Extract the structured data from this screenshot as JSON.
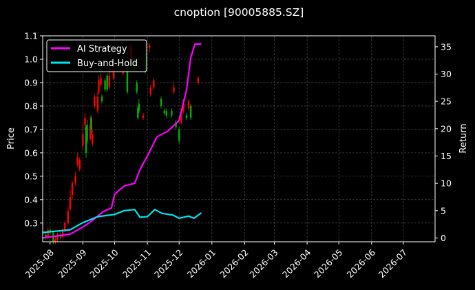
{
  "chart_data": {
    "type": "line",
    "title": "cnoption [90005885.SZ]",
    "xlabel": "",
    "ylabel_left": "Price",
    "ylabel_right": "Return",
    "x_ticks": [
      "2025-08",
      "2025-09",
      "2025-10",
      "2025-11",
      "2025-12",
      "2026-01",
      "2026-02",
      "2026-03",
      "2026-04",
      "2026-05",
      "2026-06",
      "2026-07"
    ],
    "x_range": [
      "2025-07-25",
      "2026-07-31"
    ],
    "y_left_ticks": [
      "0.3",
      "0.4",
      "0.5",
      "0.6",
      "0.7",
      "0.8",
      "0.9",
      "1.0",
      "1.1"
    ],
    "y_left_range": [
      0.22,
      1.1
    ],
    "y_right_ticks": [
      "0",
      "5",
      "10",
      "15",
      "20",
      "25",
      "30",
      "35"
    ],
    "y_right_range": [
      -0.7,
      37
    ],
    "grid": true,
    "legend_position": "top-left",
    "colors": {
      "up": "#ff0000",
      "down": "#00b000",
      "ai": "#ff00ff",
      "bh": "#00e5ee",
      "background": "#000000"
    },
    "series": [
      {
        "name": "AI Strategy",
        "axis": "right",
        "color": "#ff00ff",
        "points": [
          [
            "2025-07-25",
            0.0
          ],
          [
            "2025-08-05",
            0.3
          ],
          [
            "2025-08-20",
            0.7
          ],
          [
            "2025-09-01",
            2.0
          ],
          [
            "2025-09-10",
            3.2
          ],
          [
            "2025-09-20",
            4.8
          ],
          [
            "2025-09-28",
            5.5
          ],
          [
            "2025-10-01",
            8.0
          ],
          [
            "2025-10-10",
            9.5
          ],
          [
            "2025-10-20",
            10.0
          ],
          [
            "2025-10-25",
            12.5
          ],
          [
            "2025-11-01",
            15.0
          ],
          [
            "2025-11-10",
            18.5
          ],
          [
            "2025-11-20",
            19.5
          ],
          [
            "2025-12-01",
            21.5
          ],
          [
            "2025-12-08",
            27.0
          ],
          [
            "2025-12-12",
            33.0
          ],
          [
            "2025-12-16",
            35.5
          ],
          [
            "2025-12-22",
            35.5
          ]
        ]
      },
      {
        "name": "Buy-and-Hold",
        "axis": "right",
        "color": "#00e5ee",
        "points": [
          [
            "2025-07-25",
            1.0
          ],
          [
            "2025-08-05",
            1.2
          ],
          [
            "2025-08-20",
            1.5
          ],
          [
            "2025-09-01",
            2.8
          ],
          [
            "2025-09-15",
            3.9
          ],
          [
            "2025-10-01",
            4.3
          ],
          [
            "2025-10-10",
            5.0
          ],
          [
            "2025-10-20",
            5.2
          ],
          [
            "2025-10-25",
            3.8
          ],
          [
            "2025-11-01",
            3.9
          ],
          [
            "2025-11-08",
            5.2
          ],
          [
            "2025-11-15",
            4.5
          ],
          [
            "2025-11-25",
            4.2
          ],
          [
            "2025-12-01",
            3.6
          ],
          [
            "2025-12-10",
            4.0
          ],
          [
            "2025-12-15",
            3.6
          ],
          [
            "2025-12-22",
            4.6
          ]
        ]
      }
    ],
    "candles": [
      [
        "2025-07-28",
        0.25,
        0.24,
        0.26,
        0.23
      ],
      [
        "2025-07-30",
        0.24,
        0.27,
        0.28,
        0.23
      ],
      [
        "2025-08-01",
        0.27,
        0.26,
        0.28,
        0.25
      ],
      [
        "2025-08-04",
        0.26,
        0.22,
        0.26,
        0.21
      ],
      [
        "2025-08-06",
        0.22,
        0.23,
        0.24,
        0.21
      ],
      [
        "2025-08-08",
        0.23,
        0.25,
        0.26,
        0.22
      ],
      [
        "2025-08-11",
        0.25,
        0.24,
        0.26,
        0.23
      ],
      [
        "2025-08-13",
        0.24,
        0.27,
        0.28,
        0.23
      ],
      [
        "2025-08-15",
        0.27,
        0.3,
        0.31,
        0.26
      ],
      [
        "2025-08-18",
        0.3,
        0.35,
        0.37,
        0.29
      ],
      [
        "2025-08-20",
        0.36,
        0.41,
        0.44,
        0.35
      ],
      [
        "2025-08-22",
        0.42,
        0.47,
        0.48,
        0.4
      ],
      [
        "2025-08-25",
        0.47,
        0.5,
        0.52,
        0.46
      ],
      [
        "2025-08-27",
        0.55,
        0.58,
        0.6,
        0.54
      ],
      [
        "2025-08-29",
        0.53,
        0.57,
        0.58,
        0.52
      ],
      [
        "2025-09-01",
        0.63,
        0.68,
        0.73,
        0.61
      ],
      [
        "2025-09-03",
        0.72,
        0.75,
        0.77,
        0.7
      ],
      [
        "2025-09-04",
        0.71,
        0.6,
        0.72,
        0.58
      ],
      [
        "2025-09-05",
        0.72,
        0.65,
        0.74,
        0.64
      ],
      [
        "2025-09-08",
        0.66,
        0.72,
        0.76,
        0.65
      ],
      [
        "2025-09-09",
        0.75,
        0.7,
        0.76,
        0.68
      ],
      [
        "2025-09-10",
        0.64,
        0.68,
        0.7,
        0.63
      ],
      [
        "2025-09-12",
        0.8,
        0.84,
        0.85,
        0.79
      ],
      [
        "2025-09-15",
        0.78,
        0.84,
        0.86,
        0.77
      ],
      [
        "2025-09-16",
        0.86,
        0.91,
        0.93,
        0.85
      ],
      [
        "2025-09-18",
        0.89,
        0.92,
        0.94,
        0.88
      ],
      [
        "2025-09-19",
        0.84,
        0.82,
        0.85,
        0.81
      ],
      [
        "2025-09-22",
        0.91,
        0.87,
        0.92,
        0.86
      ],
      [
        "2025-09-24",
        0.93,
        0.87,
        0.94,
        0.86
      ],
      [
        "2025-09-26",
        0.88,
        0.93,
        0.95,
        0.87
      ],
      [
        "2025-09-30",
        0.92,
        0.95,
        0.97,
        0.91
      ],
      [
        "2025-10-09",
        0.94,
        0.95,
        0.97,
        0.93
      ],
      [
        "2025-10-13",
        0.95,
        0.86,
        0.96,
        0.85
      ],
      [
        "2025-10-16",
        1.03,
        1.06,
        1.07,
        1.01
      ],
      [
        "2025-10-17",
        0.99,
        1.05,
        1.06,
        0.98
      ],
      [
        "2025-10-20",
        0.98,
        0.96,
        1.0,
        0.95
      ],
      [
        "2025-10-22",
        0.9,
        0.86,
        0.91,
        0.85
      ],
      [
        "2025-10-23",
        0.79,
        0.75,
        0.8,
        0.74
      ],
      [
        "2025-10-24",
        0.81,
        0.78,
        0.83,
        0.77
      ],
      [
        "2025-10-28",
        0.75,
        0.76,
        0.77,
        0.74
      ],
      [
        "2025-10-30",
        1.0,
        0.95,
        1.06,
        0.94
      ],
      [
        "2025-11-03",
        1.05,
        1.06,
        1.07,
        1.03
      ],
      [
        "2025-11-04",
        0.85,
        0.88,
        0.89,
        0.84
      ],
      [
        "2025-11-07",
        0.88,
        0.91,
        0.92,
        0.87
      ],
      [
        "2025-11-14",
        0.83,
        0.8,
        0.84,
        0.79
      ],
      [
        "2025-11-17",
        0.78,
        0.77,
        0.79,
        0.76
      ],
      [
        "2025-11-19",
        0.78,
        0.76,
        0.79,
        0.75
      ],
      [
        "2025-11-24",
        0.78,
        0.76,
        0.79,
        0.75
      ],
      [
        "2025-11-26",
        0.86,
        0.88,
        0.9,
        0.85
      ],
      [
        "2025-11-28",
        0.73,
        0.71,
        0.74,
        0.7
      ],
      [
        "2025-12-01",
        0.7,
        0.65,
        0.71,
        0.64
      ],
      [
        "2025-12-03",
        0.73,
        0.77,
        0.79,
        0.72
      ],
      [
        "2025-12-05",
        0.78,
        0.81,
        0.83,
        0.77
      ],
      [
        "2025-12-08",
        0.76,
        0.75,
        0.77,
        0.74
      ],
      [
        "2025-12-10",
        0.79,
        0.82,
        0.83,
        0.78
      ],
      [
        "2025-12-12",
        0.8,
        0.75,
        0.81,
        0.74
      ],
      [
        "2025-12-19",
        0.9,
        0.92,
        0.93,
        0.89
      ]
    ]
  }
}
